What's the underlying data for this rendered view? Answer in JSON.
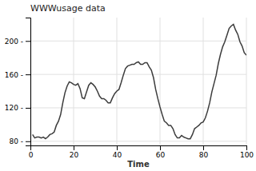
{
  "chart_data": {
    "type": "line",
    "title": "WWWusage data",
    "xlabel": "Time",
    "x": [
      1,
      2,
      3,
      4,
      5,
      6,
      7,
      8,
      9,
      10,
      11,
      12,
      13,
      14,
      15,
      16,
      17,
      18,
      19,
      20,
      21,
      22,
      23,
      24,
      25,
      26,
      27,
      28,
      29,
      30,
      31,
      32,
      33,
      34,
      35,
      36,
      37,
      38,
      39,
      40,
      41,
      42,
      43,
      44,
      45,
      46,
      47,
      48,
      49,
      50,
      51,
      52,
      53,
      54,
      55,
      56,
      57,
      58,
      59,
      60,
      61,
      62,
      63,
      64,
      65,
      66,
      67,
      68,
      69,
      70,
      71,
      72,
      73,
      74,
      75,
      76,
      77,
      78,
      79,
      80,
      81,
      82,
      83,
      84,
      85,
      86,
      87,
      88,
      89,
      90,
      91,
      92,
      93,
      94,
      95,
      96,
      97,
      98,
      99,
      100
    ],
    "values": [
      88,
      84,
      85,
      85,
      84,
      85,
      83,
      85,
      88,
      89,
      91,
      99,
      104,
      112,
      126,
      138,
      146,
      151,
      150,
      148,
      147,
      149,
      143,
      132,
      131,
      139,
      147,
      150,
      148,
      145,
      140,
      134,
      131,
      131,
      129,
      126,
      126,
      132,
      137,
      140,
      142,
      150,
      159,
      167,
      170,
      171,
      172,
      172,
      174,
      175,
      172,
      172,
      174,
      174,
      169,
      165,
      156,
      142,
      131,
      121,
      112,
      104,
      102,
      99,
      99,
      95,
      88,
      84,
      84,
      87,
      85,
      84,
      83,
      83,
      88,
      95,
      97,
      99,
      102,
      103,
      108,
      116,
      126,
      139,
      149,
      159,
      173,
      184,
      193,
      199,
      207,
      215,
      218,
      220,
      213,
      208,
      199,
      194,
      186,
      183
    ],
    "color": "#3C3C3C",
    "xlim": [
      0,
      100
    ],
    "ylim": [
      75,
      228
    ],
    "xticks": [
      0,
      20,
      40,
      60,
      80,
      100
    ],
    "yticks": [
      {
        "value": 80,
        "label": "80 -"
      },
      {
        "value": 120,
        "label": "120 -"
      },
      {
        "value": 160,
        "label": "160 -"
      },
      {
        "value": 200,
        "label": "200 -"
      }
    ],
    "grid": true
  }
}
